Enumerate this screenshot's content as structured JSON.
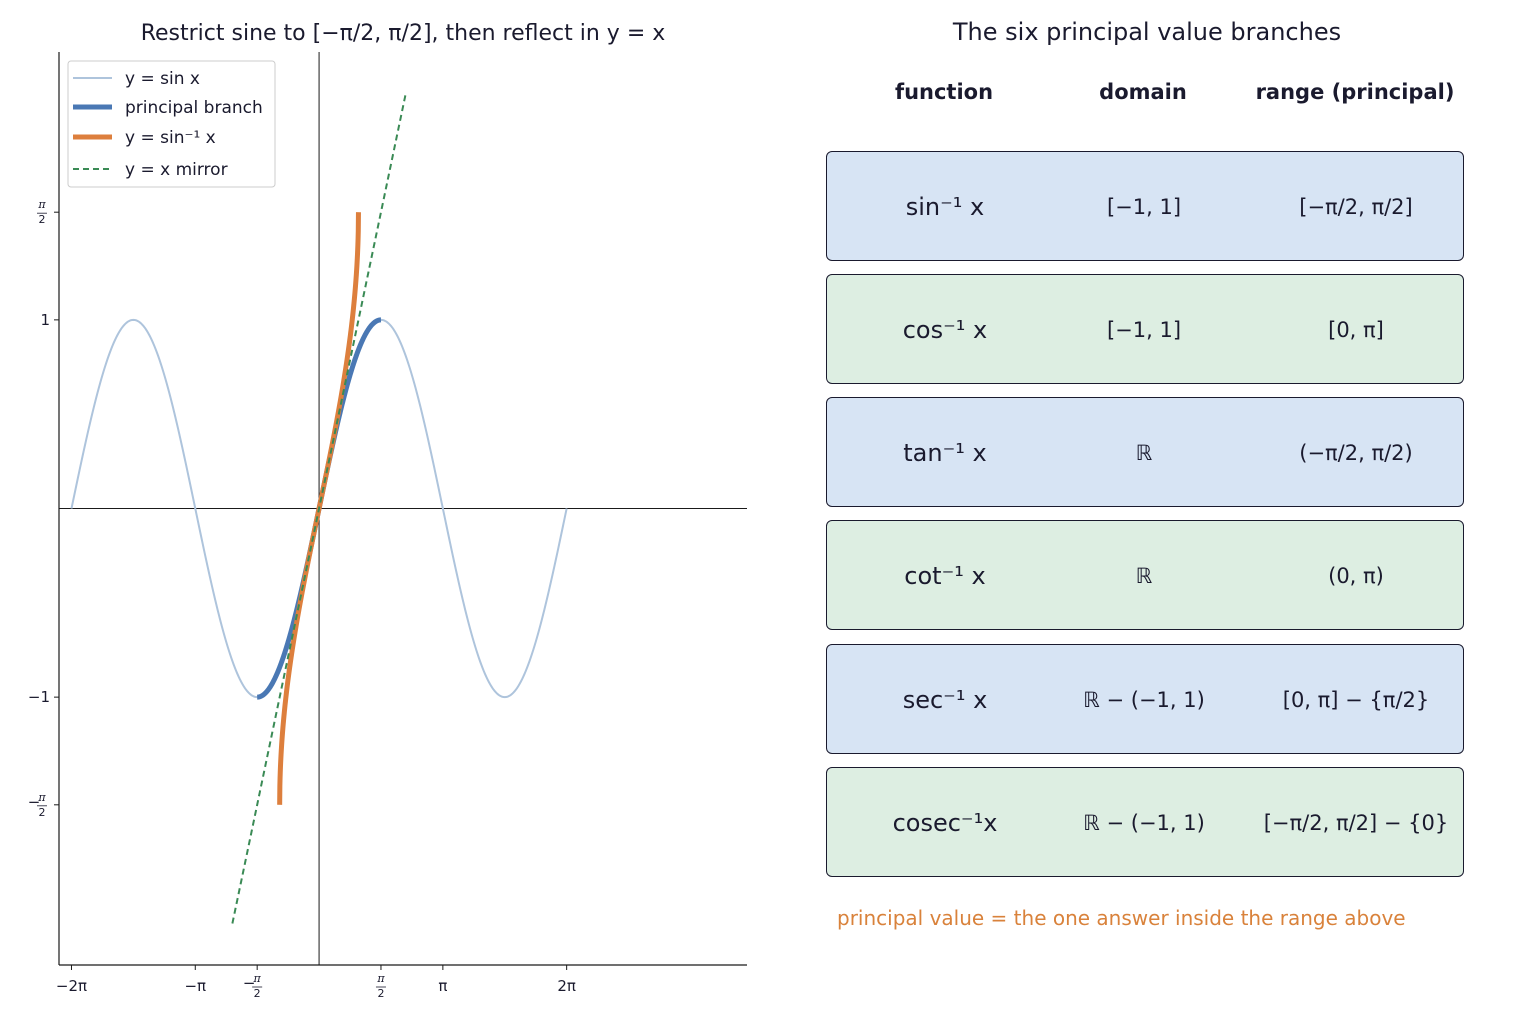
{
  "left_title": "Restrict sine to [−π/2, π/2], then reflect in y = x",
  "chart_data": {
    "type": "line",
    "title": "Restrict sine to [−π/2, π/2], then reflect in y = x",
    "xlim": [
      -6.6,
      10.86
    ],
    "ylim": [
      -2.42,
      2.42
    ],
    "x_ticks": [
      {
        "value": -6.2832,
        "label": "−2π"
      },
      {
        "value": -3.1416,
        "label": "−π"
      },
      {
        "value": -1.5708,
        "label": "−π/2"
      },
      {
        "value": 1.5708,
        "label": "π/2"
      },
      {
        "value": 3.1416,
        "label": "π"
      },
      {
        "value": 6.2832,
        "label": "2π"
      }
    ],
    "y_ticks": [
      {
        "value": 1.5708,
        "label": "π/2"
      },
      {
        "value": 1,
        "label": "1"
      },
      {
        "value": -1,
        "label": "−1"
      },
      {
        "value": -1.5708,
        "label": "−π/2"
      }
    ],
    "series": [
      {
        "name": "y = sin x",
        "function": "sin",
        "domain": [
          -6.2832,
          6.2832
        ],
        "color": "#aec4dc"
      },
      {
        "name": "principal branch",
        "function": "sin",
        "domain": [
          -1.5708,
          1.5708
        ],
        "color": "#4a78b4"
      },
      {
        "name": "y = sin⁻¹ x",
        "function": "asin",
        "domain": [
          -1,
          1
        ],
        "color": "#dd7f3d"
      },
      {
        "name": "y = x mirror",
        "function": "identity",
        "domain": [
          -2.2,
          2.2
        ],
        "color": "#3a8a55"
      }
    ],
    "legend": "top-left",
    "grid": false
  },
  "table": {
    "title": "The six principal value branches",
    "headers": [
      "function",
      "domain",
      "range (principal)"
    ],
    "rows": [
      {
        "fn": "sin⁻¹ x",
        "domain": "[−1,  1]",
        "range": "[−π/2,  π/2]",
        "color": "#d7e4f4"
      },
      {
        "fn": "cos⁻¹ x",
        "domain": "[−1,  1]",
        "range": "[0,  π]",
        "color": "#ddeee2"
      },
      {
        "fn": "tan⁻¹ x",
        "domain": "ℝ",
        "range": "(−π/2,  π/2)",
        "color": "#d7e4f4"
      },
      {
        "fn": "cot⁻¹ x",
        "domain": "ℝ",
        "range": "(0,  π)",
        "color": "#ddeee2"
      },
      {
        "fn": "sec⁻¹ x",
        "domain": "ℝ − (−1, 1)",
        "range": "[0, π] − {π/2}",
        "color": "#d7e4f4"
      },
      {
        "fn": "cosec⁻¹x",
        "domain": "ℝ − (−1, 1)",
        "range": "[−π/2, π/2] − {0}",
        "color": "#ddeee2"
      }
    ]
  },
  "note": "principal value = the one answer inside the range above"
}
